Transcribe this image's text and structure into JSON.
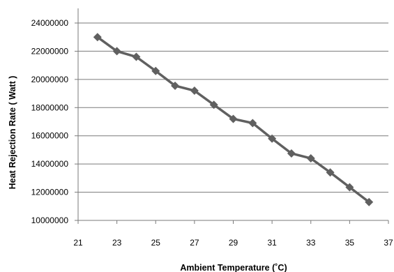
{
  "chart_data": {
    "type": "line",
    "title": "",
    "xlabel": "Ambient Temperature (˚C)",
    "ylabel": "Heat Rejection Rate ( Watt )",
    "xlim": [
      21,
      37
    ],
    "ylim": [
      10000000,
      24000000
    ],
    "xticks": [
      21,
      23,
      25,
      27,
      29,
      31,
      33,
      35,
      37
    ],
    "yticks": [
      10000000,
      12000000,
      14000000,
      16000000,
      18000000,
      20000000,
      22000000,
      24000000
    ],
    "grid": "horizontal",
    "series": [
      {
        "color": "#606060",
        "marker": "diamond",
        "x": [
          22,
          23,
          24,
          25,
          26,
          27,
          28,
          29,
          30,
          31,
          32,
          33,
          34,
          35,
          36
        ],
        "y": [
          23000000,
          22000000,
          21600000,
          20600000,
          19550000,
          19200000,
          18200000,
          17200000,
          16900000,
          15800000,
          14750000,
          14400000,
          13400000,
          12350000,
          11300000
        ]
      }
    ]
  }
}
